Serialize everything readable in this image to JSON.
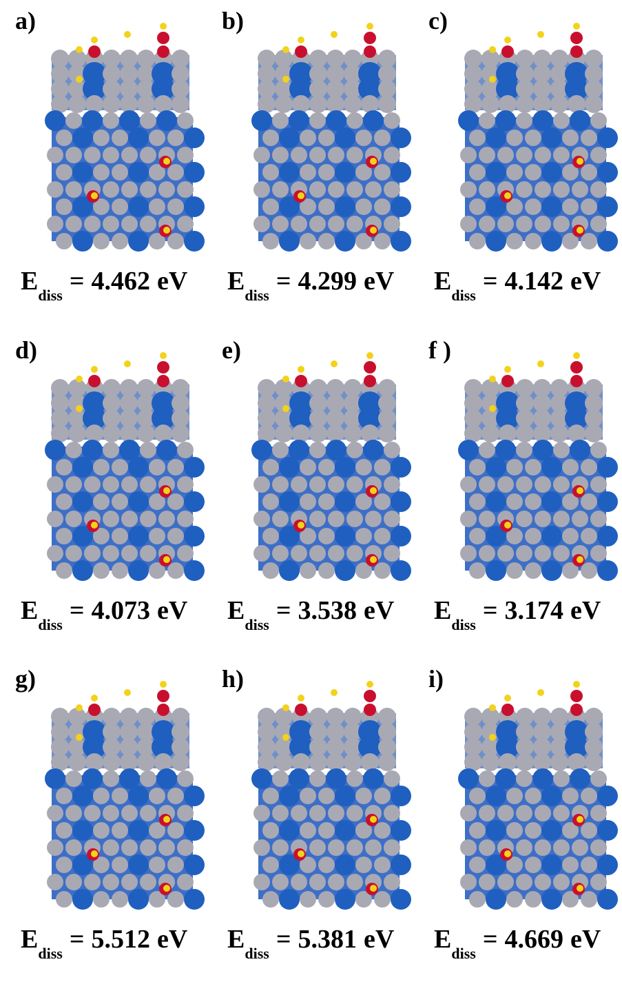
{
  "energy_symbol": "E",
  "energy_subscript": "diss",
  "equals": "=",
  "unit": "eV",
  "panels": [
    {
      "label": "a)",
      "energy": 4.462
    },
    {
      "label": "b)",
      "energy": 4.299
    },
    {
      "label": "c)",
      "energy": 4.142
    },
    {
      "label": "d)",
      "energy": 4.073
    },
    {
      "label": "e)",
      "energy": 3.538
    },
    {
      "label": "f )",
      "energy": 3.174
    },
    {
      "label": "g)",
      "energy": 5.512
    },
    {
      "label": "h)",
      "energy": 5.381
    },
    {
      "label": "i)",
      "energy": 4.669
    }
  ]
}
